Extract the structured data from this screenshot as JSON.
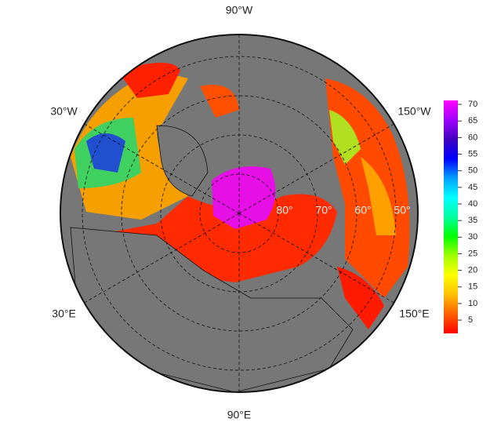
{
  "map": {
    "longitude_labels": [
      {
        "value": -90,
        "label": "90°W"
      },
      {
        "value": -30,
        "label": "30°W"
      },
      {
        "value": -150,
        "label": "150°W"
      },
      {
        "value": 30,
        "label": "30°E"
      },
      {
        "value": 150,
        "label": "150°E"
      },
      {
        "value": 90,
        "label": "90°E"
      }
    ],
    "latitude_labels": [
      {
        "value": 80,
        "label": "80°"
      },
      {
        "value": 70,
        "label": "70°"
      },
      {
        "value": 60,
        "label": "60°"
      },
      {
        "value": 50,
        "label": "50°"
      }
    ],
    "colorbar": {
      "ylim": [
        1,
        71.2
      ],
      "yticks": [
        5,
        10,
        15,
        20,
        25,
        30,
        35,
        40,
        45,
        50,
        55,
        60,
        65,
        70
      ],
      "colors": [
        "#ff0000",
        "#ff6000",
        "#ffc000",
        "#ffff00",
        "#a0ff00",
        "#00ff00",
        "#00ffa0",
        "#00ffff",
        "#00a0ff",
        "#0000ff",
        "#4000c0",
        "#a000ff",
        "#ff00ff"
      ]
    }
  }
}
